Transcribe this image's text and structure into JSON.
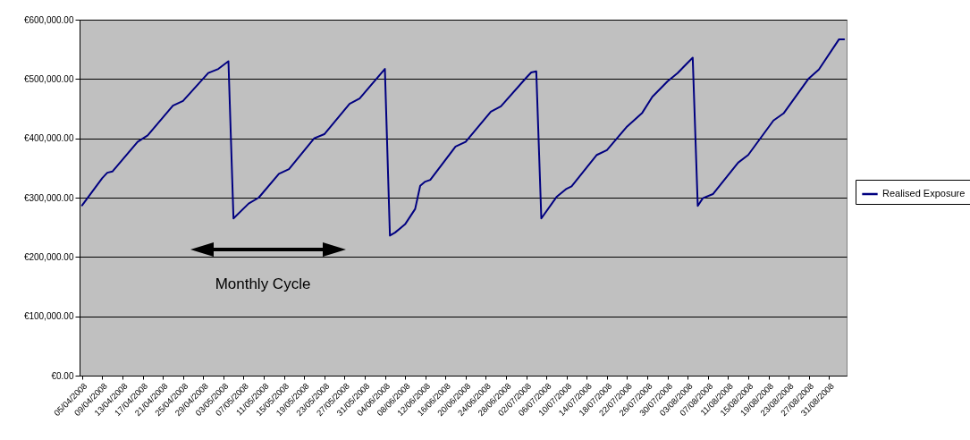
{
  "chart_data": {
    "type": "line",
    "legend": "right",
    "grid": "y",
    "marker": "none",
    "line_style": "solid",
    "xlim": [
      "2008-04-04T12:00",
      "2008-09-03T12:00"
    ],
    "xticks": [
      {
        "value": "2008-04-05",
        "label": "05/04/2008"
      },
      {
        "value": "2008-04-09",
        "label": "09/04/2008"
      },
      {
        "value": "2008-04-13",
        "label": "13/04/2008"
      },
      {
        "value": "2008-04-17",
        "label": "17/04/2008"
      },
      {
        "value": "2008-04-21",
        "label": "21/04/2008"
      },
      {
        "value": "2008-04-25",
        "label": "25/04/2008"
      },
      {
        "value": "2008-04-29",
        "label": "29/04/2008"
      },
      {
        "value": "2008-05-03",
        "label": "03/05/2008"
      },
      {
        "value": "2008-05-07",
        "label": "07/05/2008"
      },
      {
        "value": "2008-05-11",
        "label": "11/05/2008"
      },
      {
        "value": "2008-05-15",
        "label": "15/05/2008"
      },
      {
        "value": "2008-05-19",
        "label": "19/05/2008"
      },
      {
        "value": "2008-05-23",
        "label": "23/05/2008"
      },
      {
        "value": "2008-05-27",
        "label": "27/05/2008"
      },
      {
        "value": "2008-05-31",
        "label": "31/05/2008"
      },
      {
        "value": "2008-06-04",
        "label": "04/06/2008"
      },
      {
        "value": "2008-06-08",
        "label": "08/06/2008"
      },
      {
        "value": "2008-06-12",
        "label": "12/06/2008"
      },
      {
        "value": "2008-06-16",
        "label": "16/06/2008"
      },
      {
        "value": "2008-06-20",
        "label": "20/06/2008"
      },
      {
        "value": "2008-06-24",
        "label": "24/06/2008"
      },
      {
        "value": "2008-06-28",
        "label": "28/06/2008"
      },
      {
        "value": "2008-07-02",
        "label": "02/07/2008"
      },
      {
        "value": "2008-07-06",
        "label": "06/07/2008"
      },
      {
        "value": "2008-07-10",
        "label": "10/07/2008"
      },
      {
        "value": "2008-07-14",
        "label": "14/07/2008"
      },
      {
        "value": "2008-07-18",
        "label": "18/07/2008"
      },
      {
        "value": "2008-07-22",
        "label": "22/07/2008"
      },
      {
        "value": "2008-07-26",
        "label": "26/07/2008"
      },
      {
        "value": "2008-07-30",
        "label": "30/07/2008"
      },
      {
        "value": "2008-08-03",
        "label": "03/08/2008"
      },
      {
        "value": "2008-08-07",
        "label": "07/08/2008"
      },
      {
        "value": "2008-08-11",
        "label": "11/08/2008"
      },
      {
        "value": "2008-08-15",
        "label": "15/08/2008"
      },
      {
        "value": "2008-08-19",
        "label": "19/08/2008"
      },
      {
        "value": "2008-08-23",
        "label": "23/08/2008"
      },
      {
        "value": "2008-08-27",
        "label": "27/08/2008"
      },
      {
        "value": "2008-08-31",
        "label": "31/08/2008"
      }
    ],
    "ylim": [
      0,
      600000
    ],
    "yticks": [
      {
        "value": 0,
        "label": "€0.00"
      },
      {
        "value": 100000,
        "label": "€100,000.00"
      },
      {
        "value": 200000,
        "label": "€200,000.00"
      },
      {
        "value": 300000,
        "label": "€300,000.00"
      },
      {
        "value": 400000,
        "label": "€400,000.00"
      },
      {
        "value": 500000,
        "label": "€500,000.00"
      },
      {
        "value": 600000,
        "label": "€600,000.00"
      }
    ],
    "annotations": [
      "Monthly Cycle"
    ],
    "series": [
      {
        "name": "Realised Exposure",
        "color": "#000080",
        "x": [
          "2008-04-05",
          "2008-04-09",
          "2008-04-10",
          "2008-04-11",
          "2008-04-16",
          "2008-04-18",
          "2008-04-23",
          "2008-04-25",
          "2008-04-30",
          "2008-05-02",
          "2008-05-04",
          "2008-05-05",
          "2008-05-08",
          "2008-05-10",
          "2008-05-14",
          "2008-05-16",
          "2008-05-21",
          "2008-05-23",
          "2008-05-28",
          "2008-05-30",
          "2008-06-01",
          "2008-06-04",
          "2008-06-05",
          "2008-06-06",
          "2008-06-08",
          "2008-06-10",
          "2008-06-11",
          "2008-06-12",
          "2008-06-13",
          "2008-06-18",
          "2008-06-20",
          "2008-06-25",
          "2008-06-27",
          "2008-07-02",
          "2008-07-03",
          "2008-07-04",
          "2008-07-05",
          "2008-07-08",
          "2008-07-10",
          "2008-07-11",
          "2008-07-16",
          "2008-07-18",
          "2008-07-22",
          "2008-07-25",
          "2008-07-27",
          "2008-07-30",
          "2008-08-01",
          "2008-08-04",
          "2008-08-05",
          "2008-08-06",
          "2008-08-08",
          "2008-08-13",
          "2008-08-15",
          "2008-08-20",
          "2008-08-22",
          "2008-08-27",
          "2008-08-29",
          "2008-09-02",
          "2008-09-03"
        ],
        "values": [
          287000,
          333000,
          342000,
          344000,
          394000,
          405000,
          455000,
          463000,
          510000,
          517000,
          530000,
          265000,
          290000,
          300000,
          340000,
          348000,
          400000,
          407000,
          458000,
          467000,
          487000,
          517000,
          236000,
          241000,
          255000,
          281000,
          320000,
          327000,
          330000,
          386000,
          394000,
          445000,
          454000,
          502000,
          511000,
          513000,
          265000,
          301000,
          315000,
          319000,
          372000,
          380000,
          420000,
          443000,
          470000,
          496000,
          510000,
          536000,
          286000,
          299000,
          306000,
          359000,
          372000,
          430000,
          442000,
          501000,
          516000,
          567000,
          567000
        ]
      }
    ]
  }
}
